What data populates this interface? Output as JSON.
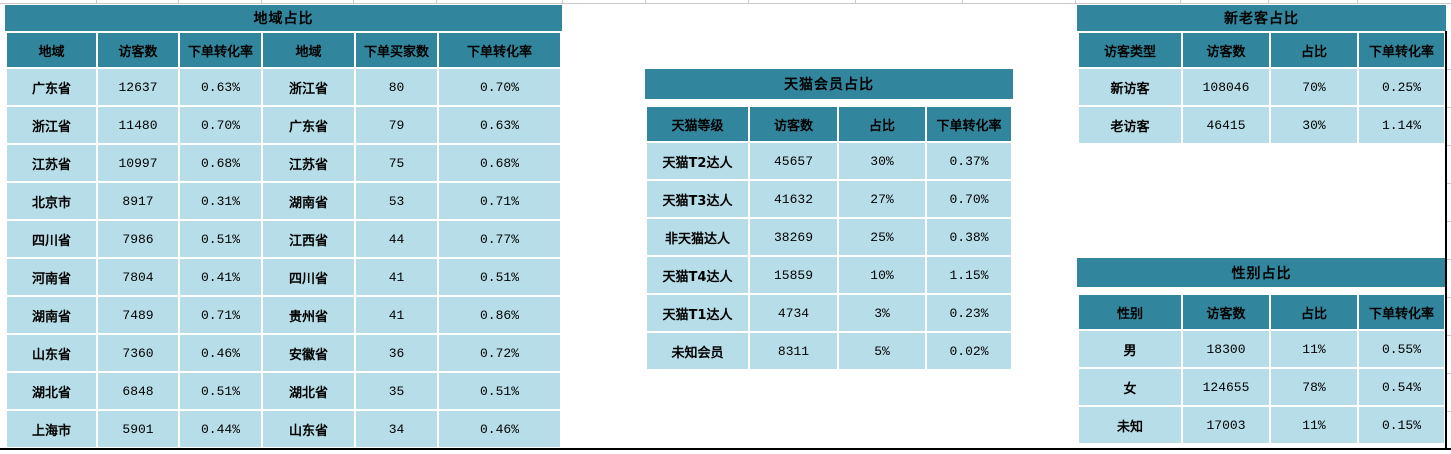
{
  "colors": {
    "header_teal": "#31859C",
    "cell_blue": "#B7DEE8",
    "gridline_gray": "#C9C9C9",
    "divider_black": "#000000"
  },
  "tables": {
    "region": {
      "title": "地域占比",
      "headers": [
        "地域",
        "访客数",
        "下单转化率",
        "地域",
        "下单买家数",
        "下单转化率"
      ],
      "rows": [
        [
          "广东省",
          "12637",
          "0.63%",
          "浙江省",
          "80",
          "0.70%"
        ],
        [
          "浙江省",
          "11480",
          "0.70%",
          "广东省",
          "79",
          "0.63%"
        ],
        [
          "江苏省",
          "10997",
          "0.68%",
          "江苏省",
          "75",
          "0.68%"
        ],
        [
          "北京市",
          "8917",
          "0.31%",
          "湖南省",
          "53",
          "0.71%"
        ],
        [
          "四川省",
          "7986",
          "0.51%",
          "江西省",
          "44",
          "0.77%"
        ],
        [
          "河南省",
          "7804",
          "0.41%",
          "四川省",
          "41",
          "0.51%"
        ],
        [
          "湖南省",
          "7489",
          "0.71%",
          "贵州省",
          "41",
          "0.86%"
        ],
        [
          "山东省",
          "7360",
          "0.46%",
          "安徽省",
          "36",
          "0.72%"
        ],
        [
          "湖北省",
          "6848",
          "0.51%",
          "湖北省",
          "35",
          "0.51%"
        ],
        [
          "上海市",
          "5901",
          "0.44%",
          "山东省",
          "34",
          "0.46%"
        ]
      ]
    },
    "tmall": {
      "title": "天猫会员占比",
      "headers": [
        "天猫等级",
        "访客数",
        "占比",
        "下单转化率"
      ],
      "rows": [
        [
          "天猫T2达人",
          "45657",
          "30%",
          "0.37%"
        ],
        [
          "天猫T3达人",
          "41632",
          "27%",
          "0.70%"
        ],
        [
          "非天猫达人",
          "38269",
          "25%",
          "0.38%"
        ],
        [
          "天猫T4达人",
          "15859",
          "10%",
          "1.15%"
        ],
        [
          "天猫T1达人",
          "4734",
          "3%",
          "0.23%"
        ],
        [
          "未知会员",
          "8311",
          "5%",
          "0.02%"
        ]
      ]
    },
    "visitor_type": {
      "title": "新老客占比",
      "headers": [
        "访客类型",
        "访客数",
        "占比",
        "下单转化率"
      ],
      "rows": [
        [
          "新访客",
          "108046",
          "70%",
          "0.25%"
        ],
        [
          "老访客",
          "46415",
          "30%",
          "1.14%"
        ]
      ]
    },
    "gender": {
      "title": "性别占比",
      "headers": [
        "性别",
        "访客数",
        "占比",
        "下单转化率"
      ],
      "rows": [
        [
          "男",
          "18300",
          "11%",
          "0.55%"
        ],
        [
          "女",
          "124655",
          "78%",
          "0.54%"
        ],
        [
          "未知",
          "17003",
          "11%",
          "0.15%"
        ]
      ]
    }
  }
}
